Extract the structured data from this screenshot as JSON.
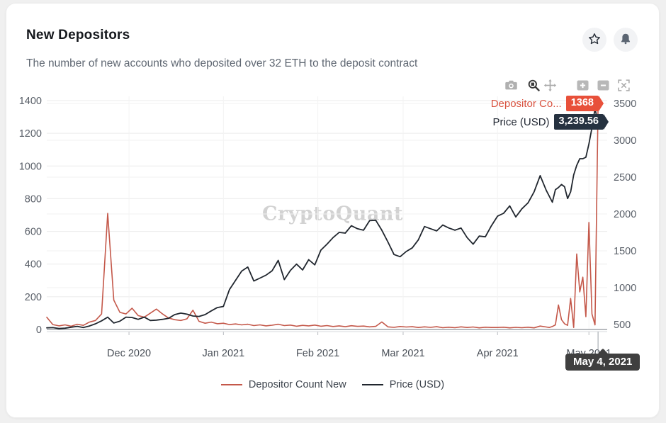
{
  "page": {
    "title": "New Depositors",
    "subtitle": "The number of new accounts who deposited over 32 ETH to the deposit contract"
  },
  "watermark": "CryptoQuant",
  "tooltip": {
    "series1_label": "Depositor Co...",
    "series1_value": "1368",
    "series2_label": "Price (USD)",
    "series2_value": "3,239.56",
    "date_label": "May 4, 2021"
  },
  "legend": [
    {
      "label": "Depositor Count New",
      "color": "#c4584a"
    },
    {
      "label": "Price (USD)",
      "color": "#20262e"
    }
  ],
  "colors": {
    "depositor_line": "#c4584a",
    "price_line": "#20262e",
    "depositor_badge": "#e8503a",
    "price_badge": "#263240",
    "date_tooltip_bg": "#3f3f3f"
  },
  "chart_data": {
    "type": "line",
    "title": "New Depositors",
    "x_domain": [
      "2020-11-04",
      "2021-05-07"
    ],
    "x_ticks": [
      {
        "date": "2020-12-01",
        "label": "Dec 2020"
      },
      {
        "date": "2021-01-01",
        "label": "Jan 2021"
      },
      {
        "date": "2021-02-01",
        "label": "Feb 2021"
      },
      {
        "date": "2021-03-01",
        "label": "Mar 2021"
      },
      {
        "date": "2021-04-01",
        "label": "Apr 2021"
      },
      {
        "date": "2021-05-01",
        "label": "May 2021"
      }
    ],
    "left_axis": {
      "name": "Depositor Count New",
      "min": 0,
      "max": 1400,
      "ticks": [
        0,
        200,
        400,
        600,
        800,
        1000,
        1200,
        1400
      ]
    },
    "right_axis": {
      "name": "Price (USD)",
      "min": 500,
      "max": 3500,
      "ticks": [
        500,
        1000,
        1500,
        2000,
        2500,
        3000,
        3500
      ]
    },
    "hover_point": {
      "date": "2021-05-04",
      "depositor_count_new": 1368,
      "price_usd": 3239.56
    },
    "dates": [
      "2020-11-04",
      "2020-11-06",
      "2020-11-08",
      "2020-11-10",
      "2020-11-12",
      "2020-11-14",
      "2020-11-16",
      "2020-11-18",
      "2020-11-20",
      "2020-11-22",
      "2020-11-24",
      "2020-11-26",
      "2020-11-28",
      "2020-11-30",
      "2020-12-02",
      "2020-12-04",
      "2020-12-06",
      "2020-12-08",
      "2020-12-10",
      "2020-12-12",
      "2020-12-14",
      "2020-12-16",
      "2020-12-18",
      "2020-12-20",
      "2020-12-22",
      "2020-12-24",
      "2020-12-26",
      "2020-12-28",
      "2020-12-30",
      "2021-01-01",
      "2021-01-03",
      "2021-01-05",
      "2021-01-07",
      "2021-01-09",
      "2021-01-11",
      "2021-01-13",
      "2021-01-15",
      "2021-01-17",
      "2021-01-19",
      "2021-01-21",
      "2021-01-23",
      "2021-01-25",
      "2021-01-27",
      "2021-01-29",
      "2021-01-31",
      "2021-02-02",
      "2021-02-04",
      "2021-02-06",
      "2021-02-08",
      "2021-02-10",
      "2021-02-12",
      "2021-02-14",
      "2021-02-16",
      "2021-02-18",
      "2021-02-20",
      "2021-02-22",
      "2021-02-24",
      "2021-02-26",
      "2021-02-28",
      "2021-03-02",
      "2021-03-04",
      "2021-03-06",
      "2021-03-08",
      "2021-03-10",
      "2021-03-12",
      "2021-03-14",
      "2021-03-16",
      "2021-03-18",
      "2021-03-20",
      "2021-03-22",
      "2021-03-24",
      "2021-03-26",
      "2021-03-28",
      "2021-03-30",
      "2021-04-01",
      "2021-04-03",
      "2021-04-05",
      "2021-04-07",
      "2021-04-09",
      "2021-04-11",
      "2021-04-13",
      "2021-04-15",
      "2021-04-17",
      "2021-04-18",
      "2021-04-19",
      "2021-04-20",
      "2021-04-21",
      "2021-04-22",
      "2021-04-23",
      "2021-04-24",
      "2021-04-25",
      "2021-04-26",
      "2021-04-27",
      "2021-04-28",
      "2021-04-29",
      "2021-04-30",
      "2021-05-01",
      "2021-05-02",
      "2021-05-03",
      "2021-05-04"
    ],
    "series": [
      {
        "name": "Depositor Count New",
        "axis": "left",
        "color": "#c4584a",
        "width": 1.6,
        "values": [
          75,
          30,
          22,
          28,
          20,
          32,
          25,
          45,
          55,
          95,
          710,
          180,
          105,
          95,
          130,
          85,
          75,
          100,
          125,
          95,
          70,
          60,
          55,
          65,
          118,
          50,
          38,
          45,
          35,
          38,
          30,
          34,
          28,
          32,
          24,
          28,
          22,
          26,
          32,
          24,
          27,
          20,
          25,
          22,
          27,
          20,
          24,
          18,
          22,
          17,
          23,
          19,
          21,
          16,
          19,
          46,
          16,
          13,
          18,
          15,
          17,
          12,
          16,
          13,
          17,
          11,
          14,
          11,
          16,
          12,
          15,
          10,
          14,
          12,
          12,
          14,
          10,
          13,
          11,
          14,
          10,
          21,
          15,
          12,
          18,
          28,
          150,
          60,
          35,
          25,
          190,
          12,
          462,
          230,
          320,
          78,
          655,
          95,
          28,
          1368
        ]
      },
      {
        "name": "Price (USD)",
        "axis": "right",
        "color": "#20262e",
        "width": 1.8,
        "values": [
          455,
          458,
          445,
          450,
          463,
          475,
          460,
          480,
          510,
          550,
          600,
          520,
          545,
          600,
          595,
          570,
          600,
          555,
          560,
          570,
          585,
          635,
          655,
          640,
          615,
          610,
          635,
          685,
          730,
          745,
          975,
          1100,
          1225,
          1280,
          1090,
          1130,
          1170,
          1230,
          1370,
          1110,
          1235,
          1320,
          1240,
          1380,
          1310,
          1510,
          1590,
          1680,
          1750,
          1740,
          1840,
          1800,
          1780,
          1910,
          1915,
          1780,
          1620,
          1450,
          1420,
          1490,
          1540,
          1650,
          1830,
          1800,
          1770,
          1850,
          1810,
          1780,
          1810,
          1680,
          1590,
          1700,
          1690,
          1840,
          1970,
          2010,
          2110,
          1960,
          2070,
          2150,
          2300,
          2520,
          2320,
          2240,
          2160,
          2330,
          2360,
          2400,
          2370,
          2210,
          2300,
          2530,
          2660,
          2750,
          2750,
          2770,
          2950,
          3170,
          3430,
          3239.56
        ]
      }
    ]
  }
}
